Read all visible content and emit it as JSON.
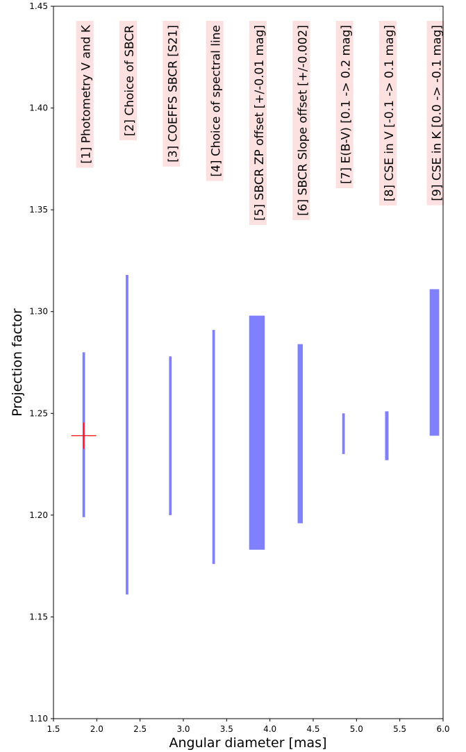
{
  "chart_data": {
    "type": "bar",
    "title": "",
    "xlabel": "Angular diameter [mas]",
    "ylabel": "Projection factor",
    "xlim": [
      1.5,
      6.0
    ],
    "ylim": [
      1.1,
      1.45
    ],
    "xticks": [
      "1.5",
      "2.0",
      "2.5",
      "3.0",
      "3.5",
      "4.0",
      "4.5",
      "5.0",
      "5.5",
      "6.0"
    ],
    "yticks": [
      "1.10",
      "1.15",
      "1.20",
      "1.25",
      "1.30",
      "1.35",
      "1.40",
      "1.45"
    ],
    "grid": false,
    "bar_color": "#8080ff",
    "marker_color": "#ff0000",
    "annotation_bg": "#fde0e0",
    "series": [
      {
        "label": "[1] Photometry V and K",
        "x": 1.85,
        "width": 0.03,
        "low": 1.199,
        "high": 1.28
      },
      {
        "label": "[2] Choice of SBCR",
        "x": 2.35,
        "width": 0.03,
        "low": 1.161,
        "high": 1.318
      },
      {
        "label": "[3] COEFFS SBCR [S21]",
        "x": 2.85,
        "width": 0.03,
        "low": 1.2,
        "high": 1.278
      },
      {
        "label": "[4] Choice of spectral line",
        "x": 3.35,
        "width": 0.03,
        "low": 1.176,
        "high": 1.291
      },
      {
        "label": "[5] SBCR ZP offset [+/-0.01 mag]",
        "x": 3.85,
        "width": 0.18,
        "low": 1.183,
        "high": 1.298
      },
      {
        "label": "[6] SBCR Slope offset [+/-0.002]",
        "x": 4.35,
        "width": 0.06,
        "low": 1.196,
        "high": 1.284
      },
      {
        "label": "[7] E(B-V) [0.1 -> 0.2 mag]",
        "x": 4.85,
        "width": 0.03,
        "low": 1.23,
        "high": 1.25
      },
      {
        "label": "[8] CSE in V [-0.1 -> 0.1 mag]",
        "x": 5.35,
        "width": 0.04,
        "low": 1.227,
        "high": 1.251
      },
      {
        "label": "[9] CSE in K [0.0 -> -0.1 mag]",
        "x": 5.9,
        "width": 0.11,
        "low": 1.239,
        "high": 1.311
      }
    ],
    "reference_point": {
      "x": 1.85,
      "y": 1.239
    }
  }
}
